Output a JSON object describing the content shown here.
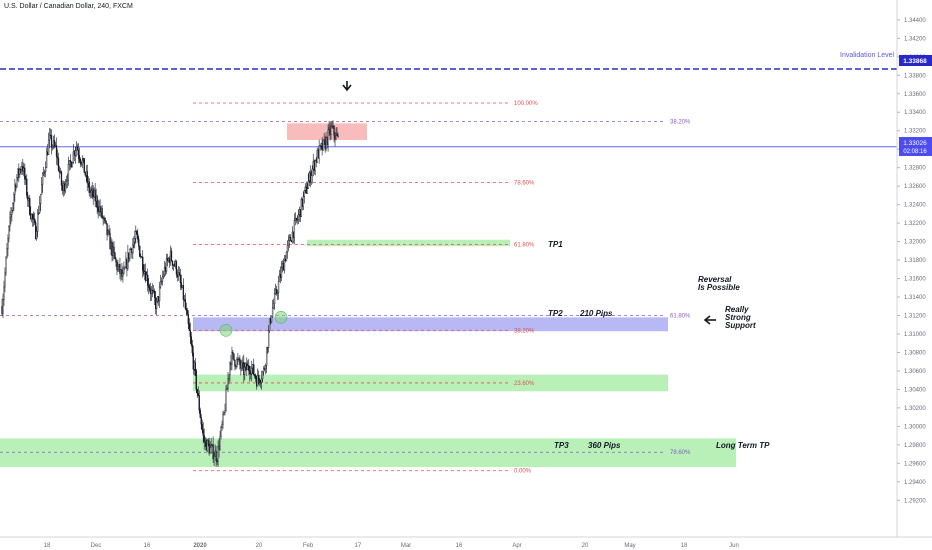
{
  "symbol": "U.S. Dollar / Canadian Dollar, 240, FXCM",
  "chart_data": {
    "type": "candlestick",
    "title": "U.S. Dollar / Canadian Dollar, 240, FXCM",
    "ylim": [
      1.289,
      1.3455
    ],
    "y_ticks": [
      "1.34400",
      "1.34200",
      "1.34000",
      "1.33800",
      "1.33600",
      "1.33400",
      "1.33200",
      "1.33000",
      "1.32800",
      "1.32600",
      "1.32400",
      "1.32200",
      "1.32000",
      "1.31800",
      "1.31600",
      "1.31400",
      "1.31200",
      "1.31000",
      "1.30800",
      "1.30600",
      "1.30400",
      "1.30200",
      "1.30000",
      "1.29800",
      "1.29600",
      "1.29400",
      "1.29200"
    ],
    "x_ticks": [
      "18",
      "Dec",
      "16",
      "2020",
      "20",
      "Feb",
      "17",
      "Mar",
      "16",
      "Apr",
      "20",
      "May",
      "18",
      "Jun"
    ],
    "price_close": [
      1.313,
      1.321,
      1.3265,
      1.3285,
      1.324,
      1.321,
      1.3265,
      1.331,
      1.33,
      1.3255,
      1.328,
      1.3305,
      1.3285,
      1.3255,
      1.3245,
      1.3225,
      1.32,
      1.3175,
      1.316,
      1.319,
      1.3205,
      1.3175,
      1.315,
      1.313,
      1.3165,
      1.3185,
      1.317,
      1.314,
      1.3095,
      1.304,
      1.2985,
      1.2975,
      1.2968,
      1.301,
      1.3075,
      1.307,
      1.306,
      1.3065,
      1.305,
      1.306,
      1.312,
      1.315,
      1.318,
      1.3205,
      1.3225,
      1.325,
      1.3275,
      1.3295,
      1.3305,
      1.3322,
      1.331
    ],
    "price_high": 1.3328,
    "price_low": 1.2955,
    "price_labels": [
      {
        "label": "1.33868",
        "value": 1.33868,
        "color": "#2828c8"
      },
      {
        "label": "1.33026",
        "sub": "02:08:16",
        "value": 1.33026,
        "color": "#4c4cf0"
      }
    ],
    "fib_levels": [
      {
        "label": "100.00%",
        "value": 1.335,
        "color": "#e05050"
      },
      {
        "label": "78.60%",
        "value": 1.3264,
        "color": "#e05050"
      },
      {
        "label": "61.80%",
        "value": 1.3197,
        "color": "#e05050"
      },
      {
        "label": "38.20%",
        "value": 1.3104,
        "color": "#e05050"
      },
      {
        "label": "23.60%",
        "value": 1.3047,
        "color": "#e05050"
      },
      {
        "label": "0.00%",
        "value": 1.2952,
        "color": "#e05050"
      },
      {
        "label": "38.20%",
        "value": 1.333,
        "color": "#8a5ac8"
      },
      {
        "label": "61.80%",
        "value": 1.312,
        "color": "#8a5ac8"
      },
      {
        "label": "78.60%",
        "value": 1.2972,
        "color": "#8a5ac8"
      }
    ],
    "zones": [
      {
        "name": "supply",
        "top": 1.3328,
        "bottom": 1.331,
        "color": "#f8bcbc"
      },
      {
        "name": "tp1",
        "top": 1.3202,
        "bottom": 1.3195,
        "color": "#b8f0b8"
      },
      {
        "name": "support",
        "top": 1.3118,
        "bottom": 1.3103,
        "color": "#b8b8f4"
      },
      {
        "name": "tp2",
        "top": 1.3056,
        "bottom": 1.3038,
        "color": "#b8f0b8"
      },
      {
        "name": "tp3",
        "top": 1.2987,
        "bottom": 1.2956,
        "color": "#b8f0b8"
      }
    ],
    "invalidation_value": 1.33868,
    "annotations": {
      "invalidation": "Invalidation Level",
      "tp1": "TP1",
      "tp2": "TP2",
      "tp2_pips": "210 Pips",
      "tp3": "TP3",
      "tp3_pips": "360 Pips",
      "long_term": "Long Term TP",
      "reversal_1": "Reversal",
      "reversal_2": "Is Possible",
      "support_1": "Really",
      "support_2": "Strong",
      "support_3": "Support"
    },
    "colors": {
      "candle": "#131722",
      "axis": "#787b86",
      "last_price": "#4c4cf0",
      "invalidation": "#2828c8"
    }
  }
}
